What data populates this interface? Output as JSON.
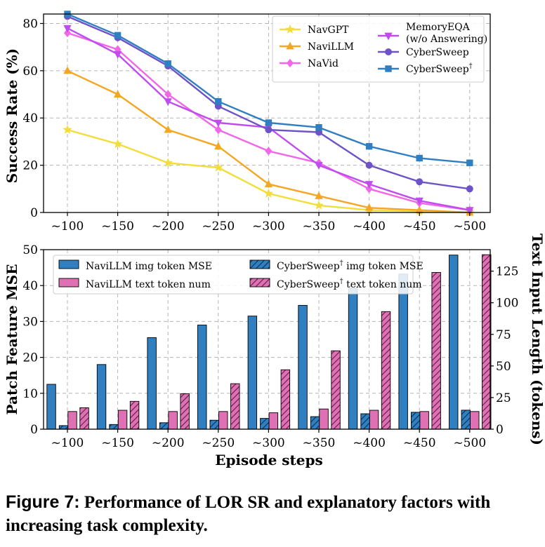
{
  "caption": {
    "label": "Figure 7:",
    "text": "Performance of LOR SR and explanatory factors with increasing task complexity."
  },
  "chart_data": [
    {
      "type": "line",
      "title": "",
      "xlabel": "",
      "ylabel": "Success Rate (%)",
      "categories": [
        "~100",
        "~150",
        "~200",
        "~250",
        "~300",
        "~350",
        "~400",
        "~450",
        "~500"
      ],
      "ylim": [
        0,
        84
      ],
      "yticks": [
        0,
        20,
        40,
        60,
        80
      ],
      "grid": true,
      "legend_position": "top-right",
      "series": [
        {
          "name": "NavGPT",
          "color": "#f2dd3a",
          "marker": "star",
          "values": [
            35,
            29,
            21,
            19,
            8,
            3,
            1,
            0.5,
            0
          ]
        },
        {
          "name": "NaviLLM",
          "color": "#f5a623",
          "marker": "triangle-up",
          "values": [
            60,
            50,
            35,
            28,
            12,
            7,
            2,
            1,
            0
          ]
        },
        {
          "name": "NaVid",
          "color": "#f266e8",
          "marker": "diamond",
          "values": [
            76,
            69,
            50,
            35,
            26,
            21,
            10,
            4,
            1
          ]
        },
        {
          "name": "MemoryEQA (w/o Answering)",
          "color": "#c04cf0",
          "marker": "triangle-down",
          "values": [
            78,
            67,
            47,
            38,
            36,
            20,
            12,
            5,
            1
          ]
        },
        {
          "name": "CyberSweep",
          "color": "#6e52c8",
          "marker": "circle",
          "values": [
            83,
            74,
            62,
            45,
            35,
            34,
            20,
            13,
            10
          ]
        },
        {
          "name": "CyberSweep†",
          "color": "#2f7fc1",
          "marker": "square",
          "values": [
            84,
            75,
            63,
            47,
            38,
            36,
            28,
            23,
            21
          ]
        }
      ],
      "legend_entries": [
        {
          "label": "NavGPT"
        },
        {
          "label": "NaviLLM"
        },
        {
          "label": "NaVid"
        },
        {
          "label_line1": "MemoryEQA",
          "label_line2": "(w/o Answering)"
        },
        {
          "label": "CyberSweep"
        },
        {
          "label": "CyberSweep",
          "sup": "†"
        }
      ]
    },
    {
      "type": "bar",
      "title": "",
      "xlabel": "Episode steps",
      "ylabel": "Patch Feature MSE",
      "y2label": "Text Input Length (tokens)",
      "categories": [
        "~100",
        "~150",
        "~200",
        "~250",
        "~300",
        "~350",
        "~400",
        "~450",
        "~500"
      ],
      "ylim": [
        0,
        50
      ],
      "yticks": [
        0,
        10,
        20,
        30,
        40,
        50
      ],
      "y2lim": [
        0,
        142
      ],
      "y2ticks": [
        0,
        25,
        50,
        75,
        100,
        125
      ],
      "grid": true,
      "legend_position": "top-left",
      "series": [
        {
          "name": "NaviLLM img token MSE",
          "axis": "left",
          "color": "#2f7fc1",
          "hatch": false,
          "values": [
            12.5,
            18,
            25.5,
            29,
            31.5,
            34.5,
            39.2,
            43.2,
            48.5
          ]
        },
        {
          "name": "CyberSweep† img token MSE",
          "axis": "left",
          "color": "#2f7fc1",
          "hatch": true,
          "values": [
            1,
            1.3,
            1.8,
            2.5,
            3,
            3.5,
            4.3,
            4.7,
            5.3
          ]
        },
        {
          "name": "NaviLLM text token num",
          "axis": "right",
          "color": "#e070b4",
          "hatch": false,
          "values": [
            14,
            15,
            14,
            14,
            13,
            16,
            15,
            14,
            14
          ]
        },
        {
          "name": "CyberSweep† text token num",
          "axis": "right",
          "color": "#e070b4",
          "hatch": true,
          "values": [
            17,
            22,
            28,
            36,
            47,
            62,
            93,
            124,
            138
          ]
        }
      ],
      "legend_entries": [
        {
          "label": "NaviLLM img token MSE"
        },
        {
          "label": "NaviLLM text token num"
        },
        {
          "label": "CyberSweep",
          "sup": "†",
          "suffix": " img token MSE"
        },
        {
          "label": "CyberSweep",
          "sup": "†",
          "suffix": " text token num"
        }
      ]
    }
  ]
}
